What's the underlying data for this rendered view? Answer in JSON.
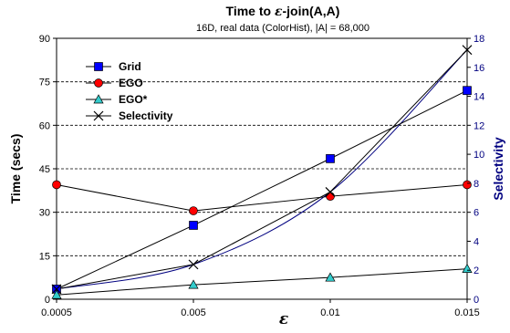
{
  "chart_data": {
    "type": "line",
    "title_prefix": "Time to ",
    "title_eps": "ε",
    "title_suffix": "-join(A,A)",
    "subtitle": "16D, real data (ColorHist), |A| = 68,000",
    "xlabel": "ε",
    "ylabel": "Time (secs)",
    "y2label": "Selectivity",
    "x": [
      "0.0005",
      "0.005",
      "0.01",
      "0.015"
    ],
    "ylim": [
      0,
      90
    ],
    "y_ticks": [
      "0",
      "15",
      "30",
      "45",
      "60",
      "75",
      "90"
    ],
    "y2lim": [
      0,
      18
    ],
    "y2_ticks": [
      "0",
      "2",
      "4",
      "6",
      "8",
      "10",
      "12",
      "14",
      "16",
      "18"
    ],
    "grid": "horizontal dashed",
    "legend_position": "top-left",
    "series": [
      {
        "name": "Grid",
        "values": [
          3.5,
          25.5,
          48.5,
          72
        ],
        "marker": "square",
        "color": "#0000ff",
        "line_color": "#000000"
      },
      {
        "name": "EGO",
        "values": [
          39.5,
          30.5,
          35.5,
          39.5
        ],
        "marker": "circle",
        "color": "#ff0000",
        "line_color": "#000000"
      },
      {
        "name": "EGO*",
        "values": [
          1.5,
          5,
          7.5,
          10.5
        ],
        "marker": "triangle",
        "color": "#33cccc",
        "line_color": "#000000"
      },
      {
        "name": "Selectivity",
        "values": [
          3.5,
          12,
          37,
          86
        ],
        "marker": "x",
        "color": "#000000",
        "line_color": "#000000"
      }
    ],
    "selectivity_trend_color": "#000080"
  }
}
